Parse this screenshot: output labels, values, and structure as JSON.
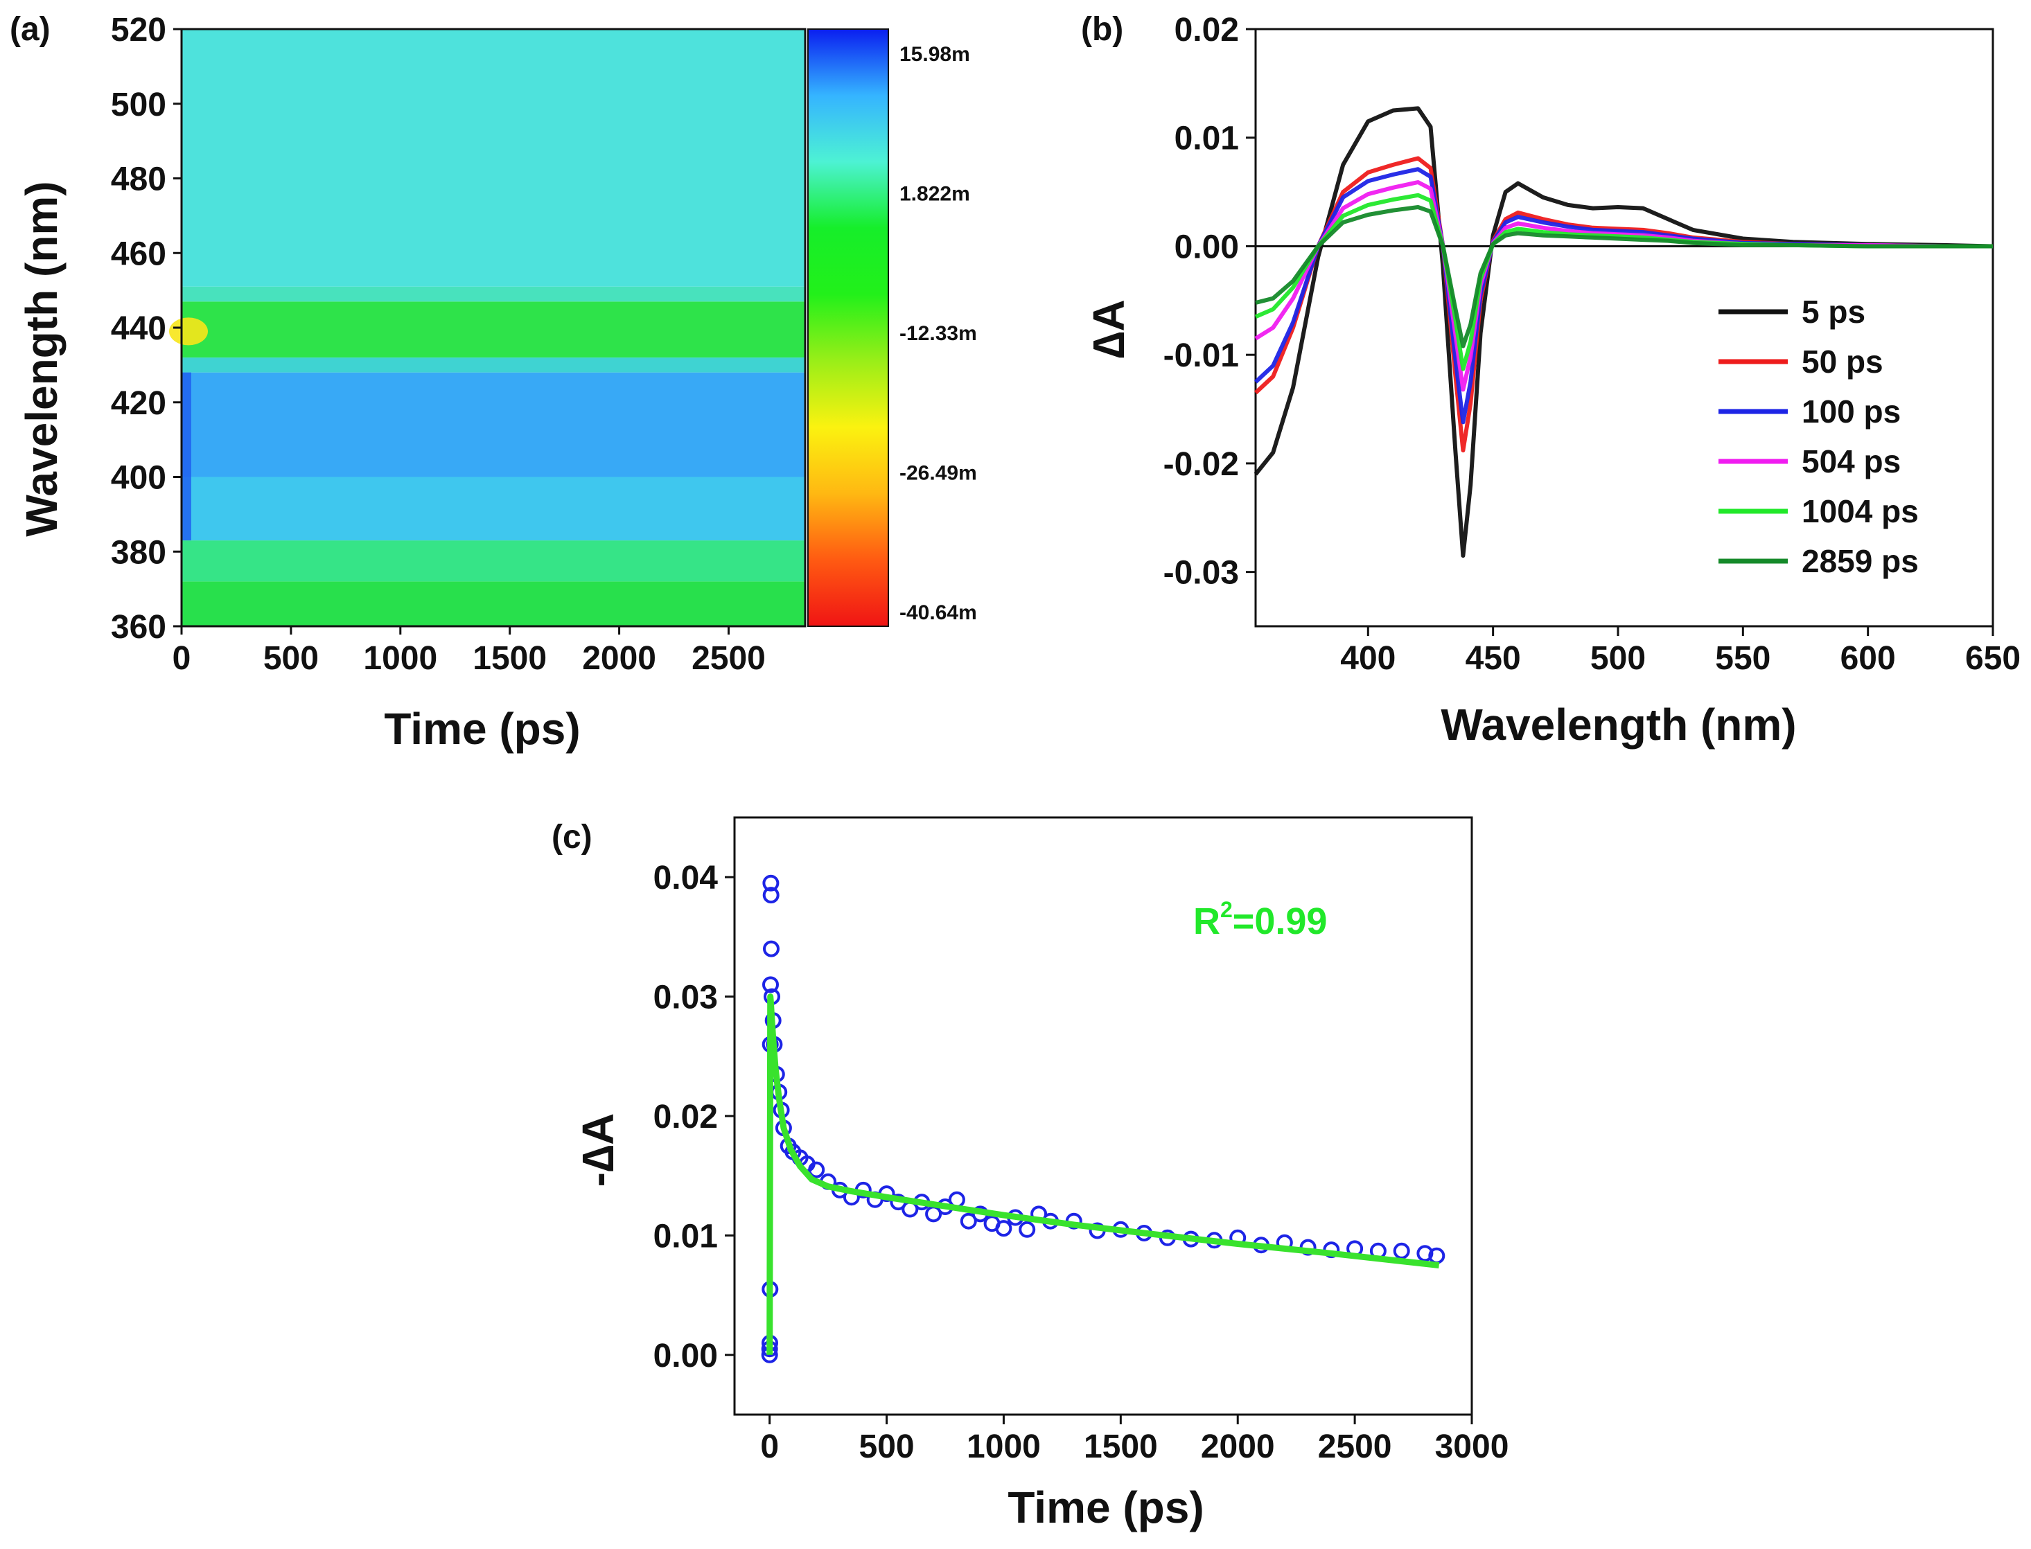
{
  "chart_data": [
    {
      "panel": "(a)",
      "type": "heatmap",
      "xlabel": "Time (ps)",
      "ylabel": "Wavelength (nm)",
      "xlim": [
        0,
        2850
      ],
      "ylim": [
        360,
        520
      ],
      "x_ticks": [
        0,
        500,
        1000,
        1500,
        2000,
        2500
      ],
      "y_ticks": [
        360,
        380,
        400,
        420,
        440,
        460,
        480,
        500,
        520
      ],
      "colorbar": {
        "ticks": [
          "15.98m",
          "1.822m",
          "-12.33m",
          "-26.49m",
          "-40.64m"
        ],
        "colors": [
          "#0a1ef0",
          "#35b4ff",
          "#4df2d4",
          "#16ee2a",
          "#22f01a",
          "#9aee18",
          "#fbf210",
          "#ffb812",
          "#ff5a12",
          "#f01414"
        ]
      },
      "bands": [
        {
          "from": 360,
          "to": 372,
          "color": "#28e04c"
        },
        {
          "from": 372,
          "to": 383,
          "color": "#36e487"
        },
        {
          "from": 383,
          "to": 400,
          "color": "#3fc7ee"
        },
        {
          "from": 400,
          "to": 428,
          "color": "#38a9f6"
        },
        {
          "from": 428,
          "to": 432,
          "color": "#3fd3d2"
        },
        {
          "from": 432,
          "to": 447,
          "color": "#2ee34a"
        },
        {
          "from": 447,
          "to": 451,
          "color": "#48e2bd"
        },
        {
          "from": 451,
          "to": 520,
          "color": "#4ee2dc"
        }
      ]
    },
    {
      "panel": "(b)",
      "type": "line",
      "xlabel": "Wavelength (nm)",
      "ylabel": "∆A",
      "xlim": [
        355,
        650
      ],
      "ylim": [
        -0.035,
        0.02
      ],
      "x_ticks": [
        400,
        450,
        500,
        550,
        600,
        650
      ],
      "y_ticks": [
        "-0.03",
        "-0.02",
        "-0.01",
        "0.00",
        "0.01",
        "0.02"
      ],
      "y_tick_values": [
        -0.03,
        -0.02,
        -0.01,
        0.0,
        0.01,
        0.02
      ],
      "x": [
        355,
        362,
        370,
        380,
        390,
        400,
        410,
        420,
        425,
        430,
        435,
        438,
        441,
        445,
        450,
        455,
        460,
        470,
        480,
        490,
        500,
        510,
        520,
        530,
        550,
        570,
        600,
        630,
        650
      ],
      "series": [
        {
          "name": "5 ps",
          "color": "#111111",
          "values": [
            -0.021,
            -0.019,
            -0.013,
            -0.001,
            0.0075,
            0.0115,
            0.0125,
            0.0127,
            0.011,
            -0.002,
            -0.019,
            -0.0285,
            -0.022,
            -0.008,
            0.001,
            0.005,
            0.0058,
            0.0045,
            0.0038,
            0.0035,
            0.0036,
            0.0035,
            0.0025,
            0.0015,
            0.0007,
            0.0004,
            0.0002,
            0.0001,
            0.0
          ]
        },
        {
          "name": "50 ps",
          "color": "#ee1c1c",
          "values": [
            -0.0135,
            -0.012,
            -0.0075,
            0.0,
            0.005,
            0.0068,
            0.0075,
            0.0081,
            0.0072,
            0.0,
            -0.012,
            -0.0188,
            -0.0145,
            -0.005,
            0.0005,
            0.0025,
            0.0031,
            0.0025,
            0.002,
            0.0017,
            0.0016,
            0.0015,
            0.0012,
            0.0008,
            0.0004,
            0.0002,
            0.0001,
            0.0,
            0.0
          ]
        },
        {
          "name": "100 ps",
          "color": "#1d24e6",
          "values": [
            -0.0125,
            -0.011,
            -0.007,
            0.0,
            0.0045,
            0.006,
            0.0066,
            0.0071,
            0.0064,
            0.0,
            -0.0105,
            -0.0162,
            -0.0125,
            -0.0045,
            0.0004,
            0.0022,
            0.0027,
            0.0022,
            0.0018,
            0.0015,
            0.0014,
            0.0013,
            0.001,
            0.0007,
            0.0003,
            0.0002,
            0.0001,
            0.0,
            0.0
          ]
        },
        {
          "name": "504 ps",
          "color": "#f01cf0",
          "values": [
            -0.0085,
            -0.0075,
            -0.0048,
            0.0,
            0.0035,
            0.0048,
            0.0054,
            0.0059,
            0.0053,
            0.0,
            -0.0082,
            -0.0132,
            -0.0102,
            -0.0036,
            0.0003,
            0.0017,
            0.0021,
            0.0017,
            0.0014,
            0.0012,
            0.0011,
            0.001,
            0.0008,
            0.0005,
            0.0002,
            0.0001,
            0.0001,
            0.0,
            0.0
          ]
        },
        {
          "name": "1004 ps",
          "color": "#21e82a",
          "values": [
            -0.0065,
            -0.0058,
            -0.0038,
            0.0,
            0.0028,
            0.0038,
            0.0043,
            0.0047,
            0.0042,
            0.0,
            -0.0068,
            -0.0113,
            -0.0088,
            -0.003,
            0.0002,
            0.0013,
            0.0016,
            0.0013,
            0.0011,
            0.001,
            0.0009,
            0.0008,
            0.0006,
            0.0004,
            0.0002,
            0.0001,
            0.0,
            0.0,
            0.0
          ]
        },
        {
          "name": "2859 ps",
          "color": "#158a2a",
          "values": [
            -0.0052,
            -0.0048,
            -0.0032,
            0.0,
            0.0022,
            0.0029,
            0.0033,
            0.0036,
            0.0032,
            0.0,
            -0.0058,
            -0.0092,
            -0.0072,
            -0.0025,
            0.0002,
            0.001,
            0.0012,
            0.001,
            0.0009,
            0.0008,
            0.0007,
            0.0006,
            0.0005,
            0.0003,
            0.0001,
            0.0001,
            0.0,
            0.0,
            0.0
          ]
        }
      ]
    },
    {
      "panel": "(c)",
      "type": "scatter",
      "xlabel": "Time (ps)",
      "ylabel": "-∆A",
      "xlim": [
        -150,
        3000
      ],
      "ylim": [
        -0.005,
        0.045
      ],
      "x_ticks": [
        0,
        500,
        1000,
        1500,
        2000,
        2500,
        3000
      ],
      "y_ticks": [
        "0.00",
        "0.01",
        "0.02",
        "0.03",
        "0.04"
      ],
      "y_tick_values": [
        0.0,
        0.01,
        0.02,
        0.03,
        0.04
      ],
      "annotation": {
        "base": "R",
        "sup": "2",
        "rest": "=0.99",
        "color": "#21e82a"
      },
      "data_color": "#1d24e6",
      "fit_color": "#39e22d",
      "data_points": [
        [
          0,
          0.0
        ],
        [
          0,
          0.0005
        ],
        [
          1,
          0.001
        ],
        [
          2,
          0.0055
        ],
        [
          3,
          0.026
        ],
        [
          4,
          0.031
        ],
        [
          5,
          0.0395
        ],
        [
          6,
          0.0385
        ],
        [
          7,
          0.034
        ],
        [
          10,
          0.03
        ],
        [
          15,
          0.028
        ],
        [
          20,
          0.026
        ],
        [
          30,
          0.0235
        ],
        [
          40,
          0.022
        ],
        [
          50,
          0.0205
        ],
        [
          60,
          0.019
        ],
        [
          80,
          0.0175
        ],
        [
          100,
          0.017
        ],
        [
          130,
          0.0165
        ],
        [
          160,
          0.016
        ],
        [
          200,
          0.0155
        ],
        [
          250,
          0.0145
        ],
        [
          300,
          0.0138
        ],
        [
          350,
          0.0132
        ],
        [
          400,
          0.0138
        ],
        [
          450,
          0.013
        ],
        [
          500,
          0.0135
        ],
        [
          550,
          0.0128
        ],
        [
          600,
          0.0122
        ],
        [
          650,
          0.0128
        ],
        [
          700,
          0.0118
        ],
        [
          750,
          0.0124
        ],
        [
          800,
          0.013
        ],
        [
          850,
          0.0112
        ],
        [
          900,
          0.0118
        ],
        [
          950,
          0.011
        ],
        [
          1000,
          0.0106
        ],
        [
          1050,
          0.0115
        ],
        [
          1100,
          0.0105
        ],
        [
          1150,
          0.0118
        ],
        [
          1200,
          0.0112
        ],
        [
          1300,
          0.0112
        ],
        [
          1400,
          0.0104
        ],
        [
          1500,
          0.0105
        ],
        [
          1600,
          0.0102
        ],
        [
          1700,
          0.0098
        ],
        [
          1800,
          0.0097
        ],
        [
          1900,
          0.0096
        ],
        [
          2000,
          0.0098
        ],
        [
          2100,
          0.0092
        ],
        [
          2200,
          0.0094
        ],
        [
          2300,
          0.009
        ],
        [
          2400,
          0.0088
        ],
        [
          2500,
          0.0089
        ],
        [
          2600,
          0.0087
        ],
        [
          2700,
          0.0087
        ],
        [
          2800,
          0.0085
        ],
        [
          2850,
          0.0083
        ]
      ],
      "fit": {
        "x": [
          0,
          3,
          5,
          8,
          15,
          25,
          40,
          60,
          90,
          130,
          180,
          250,
          350,
          500,
          700,
          1000,
          1300,
          1600,
          2000,
          2400,
          2860
        ],
        "values": [
          0.0,
          0.03,
          0.0295,
          0.0285,
          0.0265,
          0.024,
          0.0215,
          0.019,
          0.0172,
          0.0158,
          0.0147,
          0.0141,
          0.0137,
          0.0132,
          0.0126,
          0.0117,
          0.0109,
          0.0102,
          0.0093,
          0.0085,
          0.0075
        ]
      }
    }
  ]
}
